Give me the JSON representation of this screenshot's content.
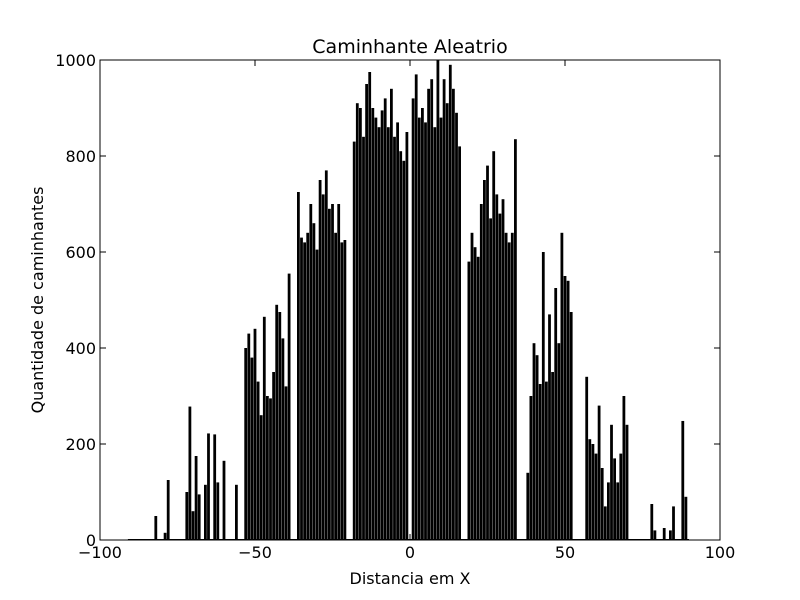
{
  "chart_data": {
    "type": "bar",
    "title": "Caminhante Aleatrio",
    "xlabel": "Distancia em X",
    "ylabel": "Quantidade de caminhantes",
    "xlim": [
      -100,
      100
    ],
    "ylim": [
      0,
      1000
    ],
    "xticks": [
      -100,
      -50,
      0,
      50,
      100
    ],
    "xtick_labels": [
      "−100",
      "−50",
      "0",
      "50",
      "100"
    ],
    "yticks": [
      0,
      200,
      400,
      600,
      800,
      1000
    ],
    "ytick_labels": [
      "0",
      "200",
      "400",
      "600",
      "800",
      "1000"
    ],
    "grid": false,
    "bar_color": "#000000",
    "x": [
      -82,
      -79,
      -78,
      -72,
      -71,
      -70,
      -69,
      -68,
      -66,
      -65,
      -63,
      -62,
      -60,
      -56,
      -53,
      -52,
      -51,
      -50,
      -49,
      -48,
      -47,
      -46,
      -45,
      -44,
      -43,
      -42,
      -41,
      -40,
      -39,
      -36,
      -35,
      -34,
      -33,
      -32,
      -31,
      -30,
      -29,
      -28,
      -27,
      -26,
      -25,
      -24,
      -23,
      -22,
      -21,
      -18,
      -17,
      -16,
      -15,
      -14,
      -13,
      -12,
      -11,
      -10,
      -9,
      -8,
      -7,
      -6,
      -5,
      -4,
      -3,
      -2,
      -1,
      1,
      2,
      3,
      4,
      5,
      6,
      7,
      8,
      9,
      10,
      11,
      12,
      13,
      14,
      15,
      16,
      19,
      20,
      21,
      22,
      23,
      24,
      25,
      26,
      27,
      28,
      29,
      30,
      31,
      32,
      33,
      34,
      38,
      39,
      40,
      41,
      42,
      43,
      44,
      45,
      46,
      47,
      48,
      49,
      50,
      51,
      52,
      57,
      58,
      59,
      60,
      61,
      62,
      63,
      64,
      65,
      66,
      67,
      68,
      69,
      70,
      78,
      79,
      82,
      84,
      85,
      88,
      89
    ],
    "values": [
      50,
      15,
      125,
      100,
      278,
      60,
      175,
      95,
      115,
      222,
      220,
      120,
      165,
      115,
      400,
      430,
      380,
      440,
      330,
      260,
      465,
      300,
      295,
      350,
      490,
      475,
      420,
      320,
      555,
      725,
      630,
      620,
      640,
      700,
      660,
      605,
      750,
      720,
      770,
      690,
      700,
      640,
      700,
      620,
      625,
      830,
      910,
      900,
      840,
      950,
      975,
      900,
      880,
      860,
      895,
      920,
      860,
      940,
      840,
      870,
      810,
      790,
      850,
      920,
      970,
      880,
      900,
      870,
      940,
      960,
      860,
      1000,
      880,
      960,
      910,
      990,
      940,
      890,
      820,
      580,
      640,
      610,
      590,
      700,
      750,
      780,
      670,
      810,
      720,
      680,
      710,
      640,
      620,
      640,
      835,
      140,
      300,
      410,
      385,
      325,
      600,
      330,
      470,
      350,
      525,
      410,
      640,
      550,
      540,
      475,
      340,
      210,
      200,
      180,
      280,
      150,
      70,
      120,
      240,
      170,
      120,
      180,
      300,
      240,
      75,
      20,
      25,
      20,
      70,
      248,
      90
    ]
  }
}
